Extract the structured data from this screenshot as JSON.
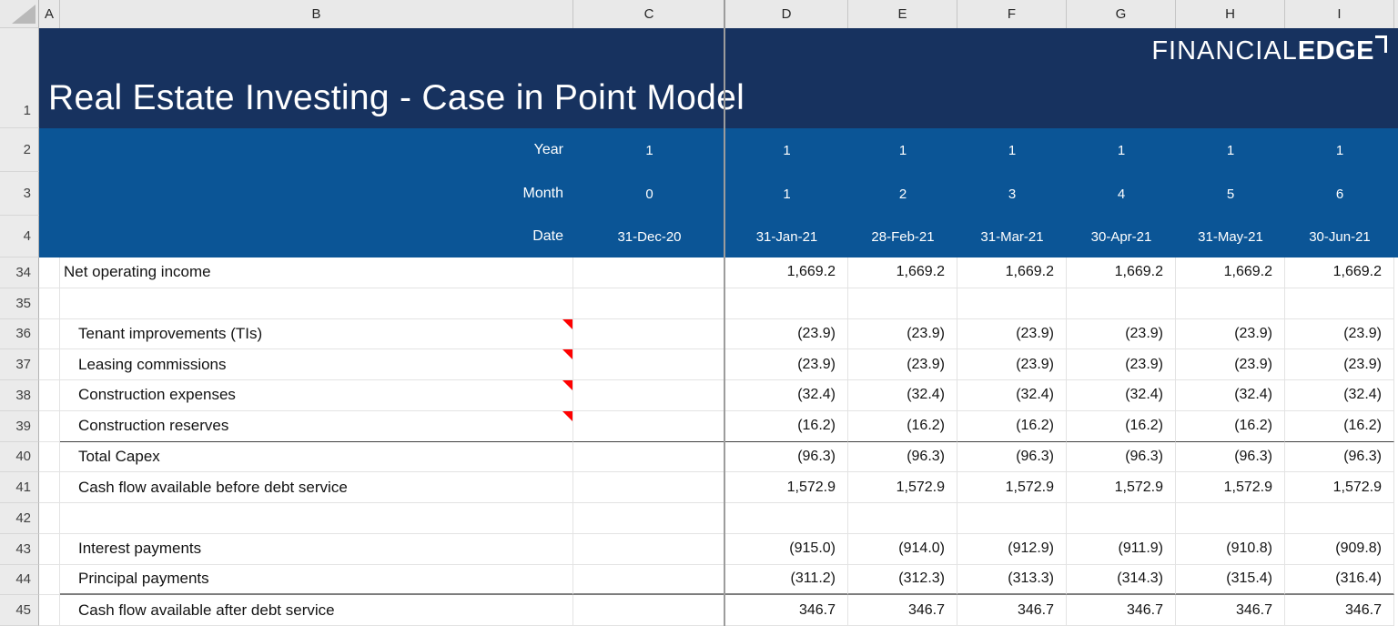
{
  "grid": {
    "column_headers": [
      "A",
      "B",
      "C",
      "D",
      "E",
      "F",
      "G",
      "H",
      "I"
    ],
    "row_numbers": [
      "1",
      "2",
      "3",
      "4",
      "34",
      "35",
      "36",
      "37",
      "38",
      "39",
      "40",
      "41",
      "42",
      "43",
      "44",
      "45"
    ]
  },
  "banner": {
    "title": "Real Estate Investing - Case in Point Model",
    "logo_thin": "FINANCIAL",
    "logo_bold": "EDGE"
  },
  "period_header": {
    "rows": [
      {
        "label": "Year",
        "frozen_value": "1",
        "values": [
          "1",
          "1",
          "1",
          "1",
          "1",
          "1"
        ]
      },
      {
        "label": "Month",
        "frozen_value": "0",
        "values": [
          "1",
          "2",
          "3",
          "4",
          "5",
          "6"
        ]
      },
      {
        "label": "Date",
        "frozen_value": "31-Dec-20",
        "values": [
          "31-Jan-21",
          "28-Feb-21",
          "31-Mar-21",
          "30-Apr-21",
          "31-May-21",
          "30-Jun-21"
        ]
      }
    ]
  },
  "table": {
    "rows": [
      {
        "row": "34",
        "label": "Net operating income",
        "indent": 0,
        "comment": false,
        "rule_above": "none",
        "values": [
          "1,669.2",
          "1,669.2",
          "1,669.2",
          "1,669.2",
          "1,669.2",
          "1,669.2"
        ]
      },
      {
        "row": "35",
        "label": "",
        "indent": 0,
        "comment": false,
        "rule_above": "none",
        "values": []
      },
      {
        "row": "36",
        "label": "Tenant improvements (TIs)",
        "indent": 1,
        "comment": true,
        "rule_above": "none",
        "values": [
          "(23.9)",
          "(23.9)",
          "(23.9)",
          "(23.9)",
          "(23.9)",
          "(23.9)"
        ]
      },
      {
        "row": "37",
        "label": "Leasing commissions",
        "indent": 1,
        "comment": true,
        "rule_above": "none",
        "values": [
          "(23.9)",
          "(23.9)",
          "(23.9)",
          "(23.9)",
          "(23.9)",
          "(23.9)"
        ]
      },
      {
        "row": "38",
        "label": "Construction expenses",
        "indent": 1,
        "comment": true,
        "rule_above": "none",
        "values": [
          "(32.4)",
          "(32.4)",
          "(32.4)",
          "(32.4)",
          "(32.4)",
          "(32.4)"
        ]
      },
      {
        "row": "39",
        "label": "Construction reserves",
        "indent": 1,
        "comment": true,
        "rule_above": "none",
        "values": [
          "(16.2)",
          "(16.2)",
          "(16.2)",
          "(16.2)",
          "(16.2)",
          "(16.2)"
        ]
      },
      {
        "row": "40",
        "label": "Total Capex",
        "indent": 1,
        "comment": false,
        "rule_above": "thin",
        "values": [
          "(96.3)",
          "(96.3)",
          "(96.3)",
          "(96.3)",
          "(96.3)",
          "(96.3)"
        ]
      },
      {
        "row": "41",
        "label": "Cash flow available before debt service",
        "indent": 1,
        "comment": false,
        "rule_above": "none",
        "values": [
          "1,572.9",
          "1,572.9",
          "1,572.9",
          "1,572.9",
          "1,572.9",
          "1,572.9"
        ]
      },
      {
        "row": "42",
        "label": "",
        "indent": 0,
        "comment": false,
        "rule_above": "none",
        "values": []
      },
      {
        "row": "43",
        "label": "Interest payments",
        "indent": 1,
        "comment": false,
        "rule_above": "none",
        "values": [
          "(915.0)",
          "(914.0)",
          "(912.9)",
          "(911.9)",
          "(910.8)",
          "(909.8)"
        ]
      },
      {
        "row": "44",
        "label": "Principal payments",
        "indent": 1,
        "comment": false,
        "rule_above": "none",
        "values": [
          "(311.2)",
          "(312.3)",
          "(313.3)",
          "(314.3)",
          "(315.4)",
          "(316.4)"
        ]
      },
      {
        "row": "45",
        "label": "Cash flow available after debt service",
        "indent": 1,
        "comment": false,
        "rule_above": "thick",
        "values": [
          "346.7",
          "346.7",
          "346.7",
          "346.7",
          "346.7",
          "346.7"
        ]
      }
    ]
  },
  "colors": {
    "banner_navy": "#17325f",
    "header_blue": "#0b5596",
    "comment_red": "#fe0000",
    "gridline": "#e3e3e3"
  }
}
